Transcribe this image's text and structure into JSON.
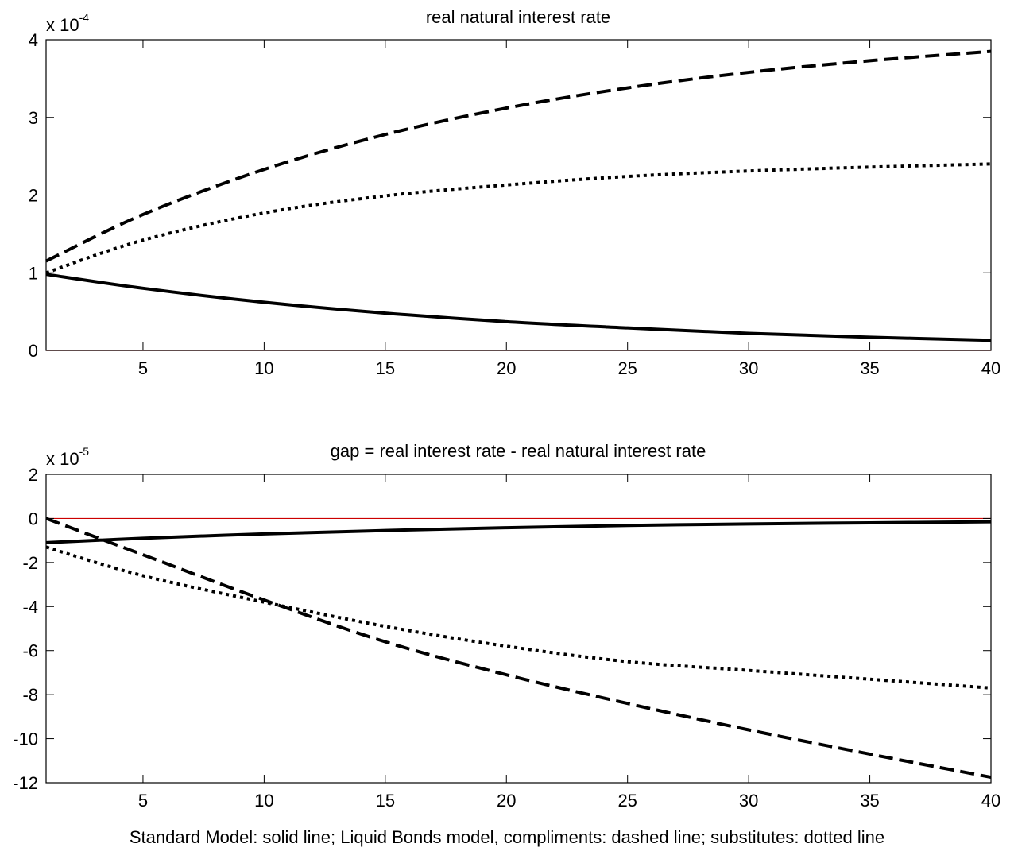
{
  "caption": "Standard Model: solid line;  Liquid Bonds model, compliments: dashed line;  substitutes: dotted line",
  "chart_data": [
    {
      "type": "line",
      "title": "real natural interest rate",
      "y_multiplier": {
        "prefix": "x 10",
        "exponent": "-4"
      },
      "xlim": [
        1,
        40
      ],
      "ylim": [
        0,
        4
      ],
      "x_ticks": [
        5,
        10,
        15,
        20,
        25,
        30,
        35,
        40
      ],
      "y_ticks": [
        0,
        1,
        2,
        3,
        4
      ],
      "zero_line": true,
      "colors": {
        "series": "#000000",
        "zero_line": "#cc0000"
      },
      "x": [
        1,
        5,
        10,
        15,
        20,
        25,
        30,
        35,
        40
      ],
      "series": [
        {
          "style": "solid",
          "values": [
            0.98,
            0.8,
            0.62,
            0.48,
            0.37,
            0.29,
            0.22,
            0.17,
            0.13
          ]
        },
        {
          "style": "dashed",
          "values": [
            1.15,
            1.75,
            2.33,
            2.78,
            3.12,
            3.38,
            3.58,
            3.73,
            3.85
          ]
        },
        {
          "style": "dotted",
          "values": [
            1.0,
            1.42,
            1.77,
            1.99,
            2.13,
            2.24,
            2.31,
            2.36,
            2.4
          ]
        }
      ]
    },
    {
      "type": "line",
      "title": "gap = real interest rate - real natural interest rate",
      "y_multiplier": {
        "prefix": "x 10",
        "exponent": "-5"
      },
      "xlim": [
        1,
        40
      ],
      "ylim": [
        -12,
        2
      ],
      "x_ticks": [
        5,
        10,
        15,
        20,
        25,
        30,
        35,
        40
      ],
      "y_ticks": [
        -12,
        -10,
        -8,
        -6,
        -4,
        -2,
        0,
        2
      ],
      "zero_line": true,
      "colors": {
        "series": "#000000",
        "zero_line": "#cc0000"
      },
      "x": [
        1,
        5,
        10,
        15,
        20,
        25,
        30,
        35,
        40
      ],
      "series": [
        {
          "style": "solid",
          "values": [
            -1.1,
            -0.9,
            -0.7,
            -0.55,
            -0.42,
            -0.32,
            -0.25,
            -0.2,
            -0.15
          ]
        },
        {
          "style": "dashed",
          "values": [
            0.0,
            -1.65,
            -3.7,
            -5.6,
            -7.1,
            -8.4,
            -9.6,
            -10.7,
            -11.75
          ]
        },
        {
          "style": "dotted",
          "values": [
            -1.3,
            -2.6,
            -3.8,
            -4.9,
            -5.8,
            -6.5,
            -6.9,
            -7.3,
            -7.7
          ]
        }
      ]
    }
  ]
}
